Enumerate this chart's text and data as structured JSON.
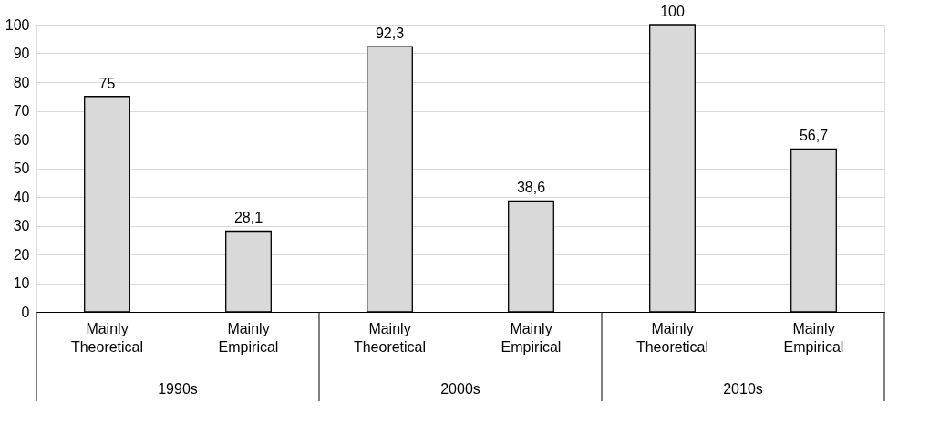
{
  "chart_data": {
    "type": "bar",
    "categories": [
      "Mainly Theoretical",
      "Mainly Empirical",
      "Mainly Theoretical",
      "Mainly Empirical",
      "Mainly Theoretical",
      "Mainly Empirical"
    ],
    "values": [
      75,
      28.1,
      92.3,
      38.6,
      100,
      56.7
    ],
    "value_labels": [
      "75",
      "28,1",
      "92,3",
      "38,6",
      "100",
      "56,7"
    ],
    "color": "#d9d9d9",
    "annotations": [
      "1990s",
      "2000s",
      "2010s"
    ],
    "ylim": [
      0,
      100
    ],
    "yticks": [
      0,
      10,
      20,
      30,
      40,
      50,
      60,
      70,
      80,
      90,
      100
    ],
    "grid": "y"
  }
}
